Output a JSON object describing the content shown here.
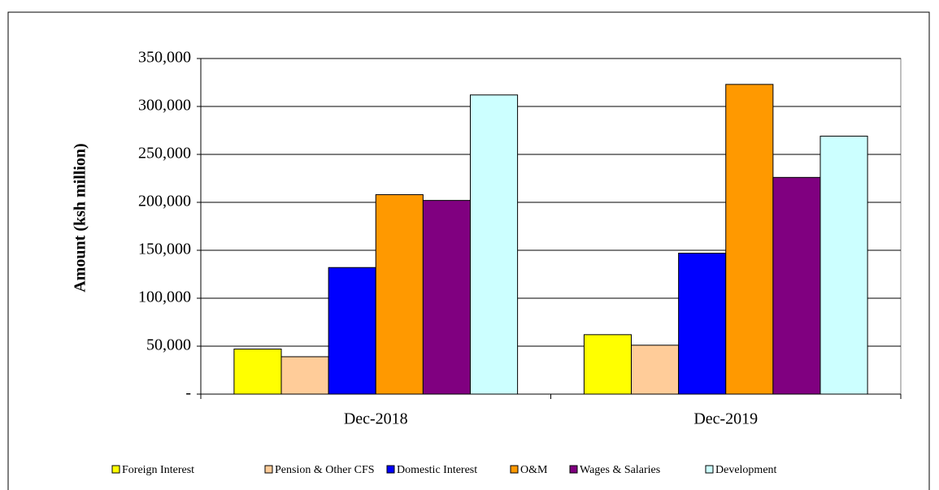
{
  "chart_data": {
    "type": "bar",
    "y_label": "Amount  (ksh million)",
    "categories": [
      "Dec-2018",
      "Dec-2019"
    ],
    "series": [
      {
        "name": "Foreign Interest",
        "color": "#ffff00",
        "values": [
          47000,
          62000
        ]
      },
      {
        "name": "Pension & Other CFS",
        "color": "#ffcc99",
        "values": [
          39000,
          51000
        ]
      },
      {
        "name": "Domestic Interest",
        "color": "#0000ff",
        "values": [
          132000,
          147000
        ]
      },
      {
        "name": "O&M",
        "color": "#ff9900",
        "values": [
          208000,
          323000
        ]
      },
      {
        "name": "Wages & Salaries",
        "color": "#800080",
        "values": [
          202000,
          226000
        ]
      },
      {
        "name": "Development",
        "color": "#ccffff",
        "values": [
          312000,
          269000
        ]
      }
    ],
    "ylim": [
      0,
      350000
    ],
    "yticks": [
      {
        "value": 0,
        "label": "-"
      },
      {
        "value": 50000,
        "label": "50,000"
      },
      {
        "value": 100000,
        "label": "100,000"
      },
      {
        "value": 150000,
        "label": "150,000"
      },
      {
        "value": 200000,
        "label": "200,000"
      },
      {
        "value": 250000,
        "label": "250,000"
      },
      {
        "value": 300000,
        "label": "300,000"
      },
      {
        "value": 350000,
        "label": "350,000"
      }
    ],
    "grid": true,
    "legend": "bottom"
  }
}
